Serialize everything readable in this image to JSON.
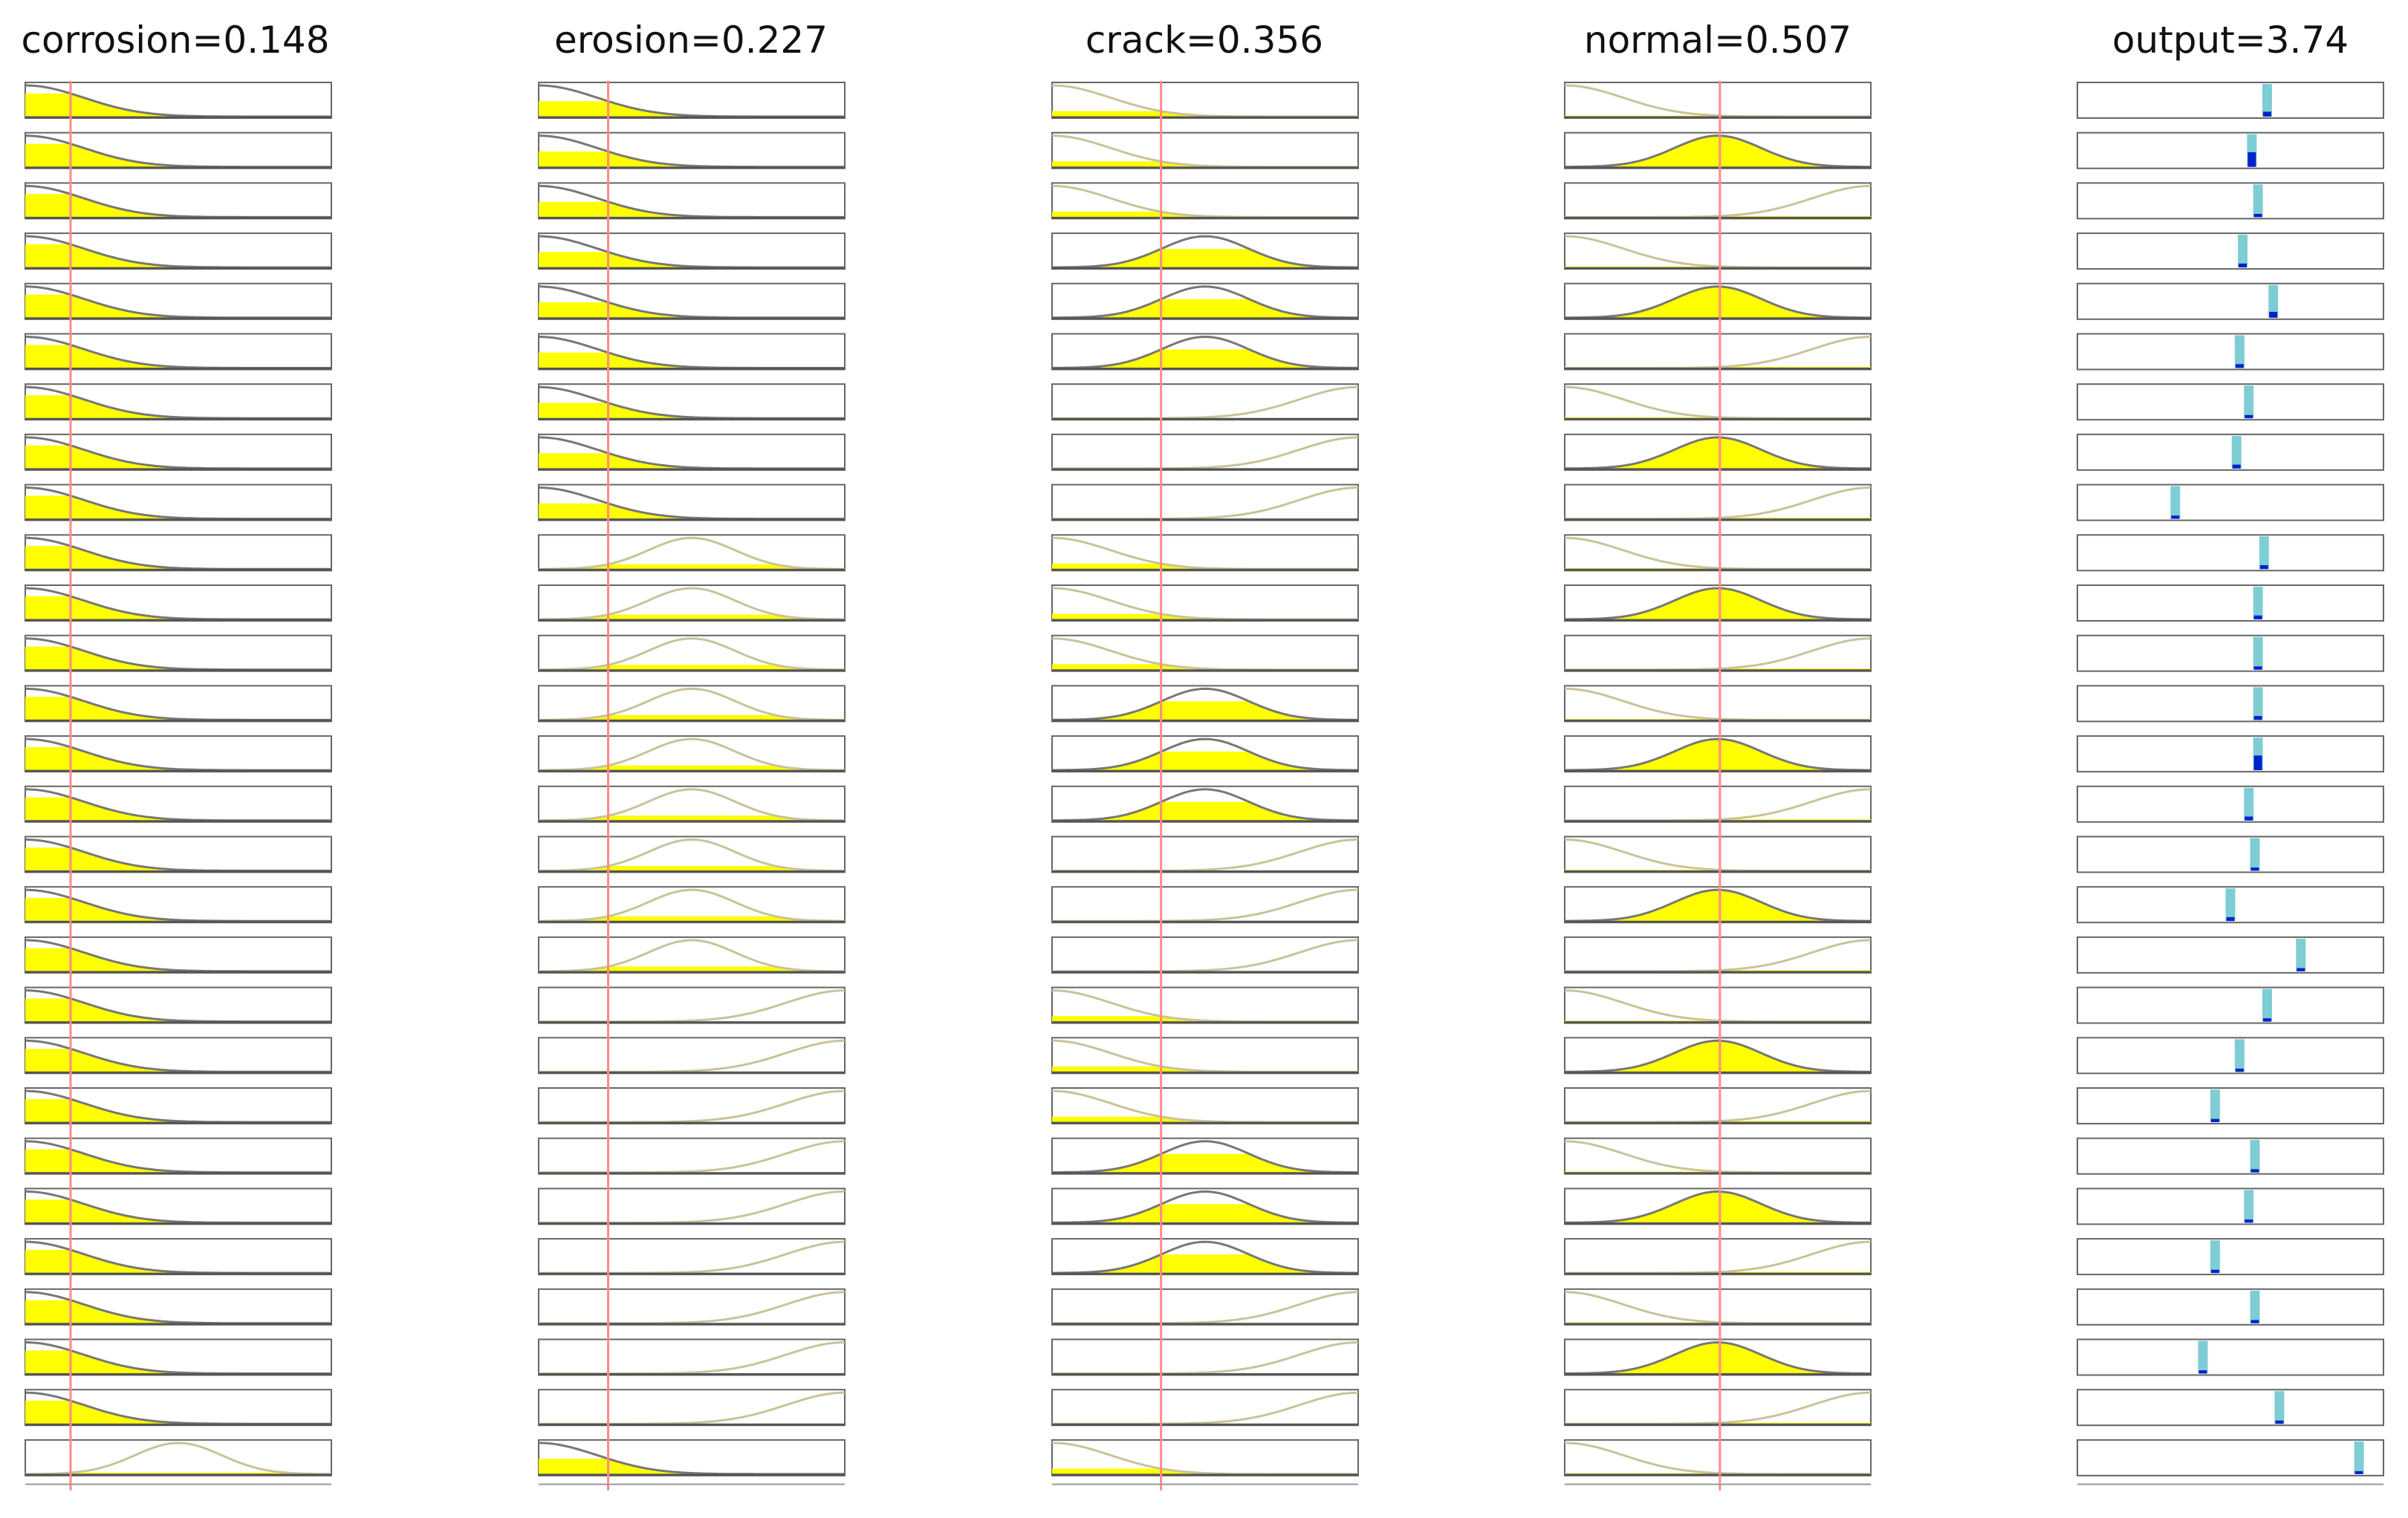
{
  "viewer": {
    "columns": [
      {
        "name": "corrosion",
        "value": "0.148",
        "title": "corrosion=0.148"
      },
      {
        "name": "erosion",
        "value": "0.227",
        "title": "erosion=0.227"
      },
      {
        "name": "crack",
        "value": "0.356",
        "title": "crack=0.356"
      },
      {
        "name": "normal",
        "value": "0.507",
        "title": "normal=0.507"
      },
      {
        "name": "output",
        "value": "3.74",
        "title": "output=3.74"
      }
    ],
    "input_values": [
      0.148,
      0.227,
      0.356,
      0.507
    ],
    "input_range": [
      0,
      1
    ],
    "output_range": [
      0,
      10
    ],
    "rules": [
      {
        "mf": [
          "low",
          "low",
          "low",
          "low"
        ],
        "out": 6.2,
        "w": 0.15
      },
      {
        "mf": [
          "low",
          "low",
          "low",
          "mid"
        ],
        "out": 5.7,
        "w": 0.45
      },
      {
        "mf": [
          "low",
          "low",
          "low",
          "high"
        ],
        "out": 5.9,
        "w": 0.1
      },
      {
        "mf": [
          "low",
          "low",
          "mid",
          "low"
        ],
        "out": 5.4,
        "w": 0.12
      },
      {
        "mf": [
          "low",
          "low",
          "mid",
          "mid"
        ],
        "out": 6.4,
        "w": 0.18
      },
      {
        "mf": [
          "low",
          "low",
          "mid",
          "high"
        ],
        "out": 5.3,
        "w": 0.12
      },
      {
        "mf": [
          "low",
          "low",
          "high",
          "low"
        ],
        "out": 5.6,
        "w": 0.1
      },
      {
        "mf": [
          "low",
          "low",
          "high",
          "mid"
        ],
        "out": 5.2,
        "w": 0.12
      },
      {
        "mf": [
          "low",
          "low",
          "high",
          "high"
        ],
        "out": 3.2,
        "w": 0.1
      },
      {
        "mf": [
          "low",
          "mid",
          "low",
          "low"
        ],
        "out": 6.1,
        "w": 0.12
      },
      {
        "mf": [
          "low",
          "mid",
          "low",
          "mid"
        ],
        "out": 5.9,
        "w": 0.12
      },
      {
        "mf": [
          "low",
          "mid",
          "low",
          "high"
        ],
        "out": 5.9,
        "w": 0.1
      },
      {
        "mf": [
          "low",
          "mid",
          "mid",
          "low"
        ],
        "out": 5.9,
        "w": 0.12
      },
      {
        "mf": [
          "low",
          "mid",
          "mid",
          "mid"
        ],
        "out": 5.9,
        "w": 0.45
      },
      {
        "mf": [
          "low",
          "mid",
          "mid",
          "high"
        ],
        "out": 5.6,
        "w": 0.12
      },
      {
        "mf": [
          "low",
          "mid",
          "high",
          "low"
        ],
        "out": 5.8,
        "w": 0.1
      },
      {
        "mf": [
          "low",
          "mid",
          "high",
          "mid"
        ],
        "out": 5.0,
        "w": 0.12
      },
      {
        "mf": [
          "low",
          "mid",
          "high",
          "high"
        ],
        "out": 7.3,
        "w": 0.1
      },
      {
        "mf": [
          "low",
          "high",
          "low",
          "low"
        ],
        "out": 6.2,
        "w": 0.1
      },
      {
        "mf": [
          "low",
          "high",
          "low",
          "mid"
        ],
        "out": 5.3,
        "w": 0.1
      },
      {
        "mf": [
          "low",
          "high",
          "low",
          "high"
        ],
        "out": 4.5,
        "w": 0.1
      },
      {
        "mf": [
          "low",
          "high",
          "mid",
          "low"
        ],
        "out": 5.8,
        "w": 0.1
      },
      {
        "mf": [
          "low",
          "high",
          "mid",
          "mid"
        ],
        "out": 5.6,
        "w": 0.1
      },
      {
        "mf": [
          "low",
          "high",
          "mid",
          "high"
        ],
        "out": 4.5,
        "w": 0.1
      },
      {
        "mf": [
          "low",
          "high",
          "high",
          "low"
        ],
        "out": 5.8,
        "w": 0.1
      },
      {
        "mf": [
          "low",
          "high",
          "high",
          "mid"
        ],
        "out": 4.1,
        "w": 0.1
      },
      {
        "mf": [
          "low",
          "high",
          "high",
          "high"
        ],
        "out": 6.6,
        "w": 0.1
      },
      {
        "mf": [
          "mid",
          "low",
          "low",
          "low"
        ],
        "out": 9.2,
        "w": 0.05
      }
    ]
  },
  "colors": {
    "fill": "#ffff00",
    "curve_active": "#777777",
    "curve_inactive": "#c8c39a",
    "baseline": "#555555",
    "indicator": "#ff8a8a",
    "box_border": "#666666",
    "output_bar": "#7fcdd4",
    "output_bar_fill": "#0022cc"
  }
}
